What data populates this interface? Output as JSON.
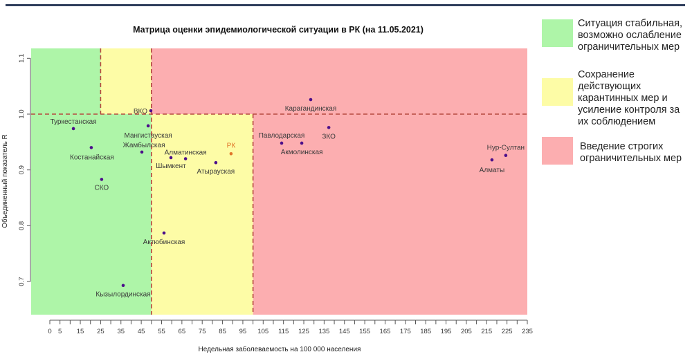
{
  "chart_data": {
    "type": "scatter",
    "title": "Матрица оценки эпидемиологической ситуации в РК (на 11.05.2021)",
    "xlabel": "Недельная заболеваемость на 100 000 населения",
    "ylabel": "Объединенный показатель R",
    "xlim": [
      -9.2,
      235
    ],
    "ylim": [
      0.642,
      1.119
    ],
    "x_ticks": [
      0,
      5,
      15,
      25,
      35,
      45,
      55,
      65,
      75,
      85,
      95,
      105,
      115,
      125,
      135,
      145,
      155,
      165,
      175,
      185,
      195,
      205,
      215,
      225,
      235
    ],
    "y_ticks": [
      0.7,
      0.8,
      0.9,
      1.0,
      1.1
    ],
    "y_tick_labels": [
      "0.7",
      "0.8",
      "0.9",
      "1.0",
      "1.1"
    ],
    "thresholds": {
      "x_green": 50,
      "x_yellow": 100,
      "x_yellow_upper": 25,
      "y_r": 1.0
    },
    "zone_colors": {
      "green": "#aef5a8",
      "yellow": "#fdfca6",
      "red": "#fcaeb0",
      "threshold_line": "#b5483f"
    },
    "point_color": "#4b0e8a",
    "highlight_color": "#e0762a",
    "points": [
      {
        "label": "Туркестанская",
        "x": 11.6,
        "y": 0.974
      },
      {
        "label": "Костанайская",
        "x": 20.4,
        "y": 0.94
      },
      {
        "label": "СКО",
        "x": 25.5,
        "y": 0.883
      },
      {
        "label": "Мангистауская",
        "x": 48.4,
        "y": 0.979
      },
      {
        "label": "Жамбылская",
        "x": 45.3,
        "y": 0.932
      },
      {
        "label": "ВКО",
        "x": 49.7,
        "y": 1.006
      },
      {
        "label": "Шымкент",
        "x": 59.6,
        "y": 0.922
      },
      {
        "label": "Алматинская",
        "x": 66.8,
        "y": 0.92
      },
      {
        "label": "Атырауская",
        "x": 81.7,
        "y": 0.913
      },
      {
        "label": "РК",
        "x": 89.2,
        "y": 0.929,
        "highlight": true
      },
      {
        "label": "Актюбинская",
        "x": 56.2,
        "y": 0.787
      },
      {
        "label": "Кызылординская",
        "x": 36.1,
        "y": 0.693
      },
      {
        "label": "Карагандинская",
        "x": 128.4,
        "y": 1.026
      },
      {
        "label": "Павлодарская",
        "x": 114.1,
        "y": 0.948
      },
      {
        "label": "Акмолинская",
        "x": 124.0,
        "y": 0.948
      },
      {
        "label": "ЗКО",
        "x": 137.3,
        "y": 0.976
      },
      {
        "label": "Нур-Султан",
        "x": 224.4,
        "y": 0.926
      },
      {
        "label": "Алматы",
        "x": 217.6,
        "y": 0.918
      }
    ]
  },
  "legend": [
    {
      "color": "#aef5a8",
      "text": "Ситуация стабильная,\nвозможно ослабление\nограничительных мер"
    },
    {
      "color": "#fdfca6",
      "text": "Сохранение\nдействующих\nкарантинных мер и\nусиление контроля за\nих соблюдением"
    },
    {
      "color": "#fcaeb0",
      "text": "Введение строгих\nограничительных мер"
    }
  ]
}
